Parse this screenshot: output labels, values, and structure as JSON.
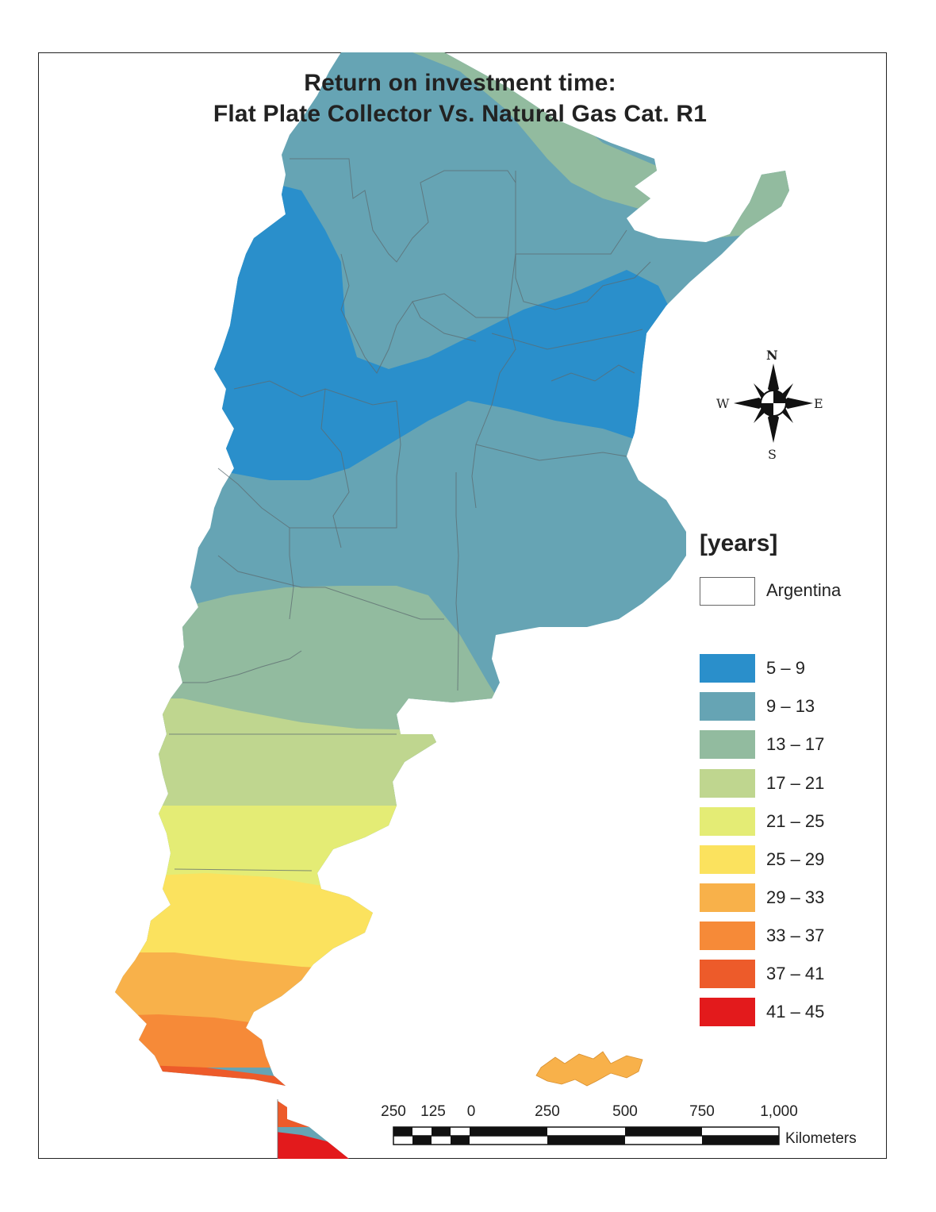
{
  "title": {
    "line1": "Return on investment time:",
    "line2": "Flat Plate Collector  Vs. Natural Gas Cat. R1"
  },
  "compass": {
    "north": "N",
    "south": "S",
    "east": "E",
    "west": "W"
  },
  "legend": {
    "title": "[years]",
    "outline_label": "Argentina",
    "classes": [
      {
        "label": "5 – 9",
        "color": "#2a8fcb"
      },
      {
        "label": "9 – 13",
        "color": "#66a4b4"
      },
      {
        "label": "13 – 17",
        "color": "#92bb9f"
      },
      {
        "label": "17 – 21",
        "color": "#bfd68f"
      },
      {
        "label": "21 – 25",
        "color": "#e4ec75"
      },
      {
        "label": "25 – 29",
        "color": "#fbe25e"
      },
      {
        "label": "29 – 33",
        "color": "#f8b14a"
      },
      {
        "label": "33 – 37",
        "color": "#f68a38"
      },
      {
        "label": "37 – 41",
        "color": "#ed5b2a"
      },
      {
        "label": "41 – 45",
        "color": "#e31a1c"
      }
    ]
  },
  "scale_bar": {
    "labels": [
      "250",
      "125",
      "0",
      "250",
      "500",
      "750",
      "1,000"
    ],
    "unit": "Kilometers"
  }
}
